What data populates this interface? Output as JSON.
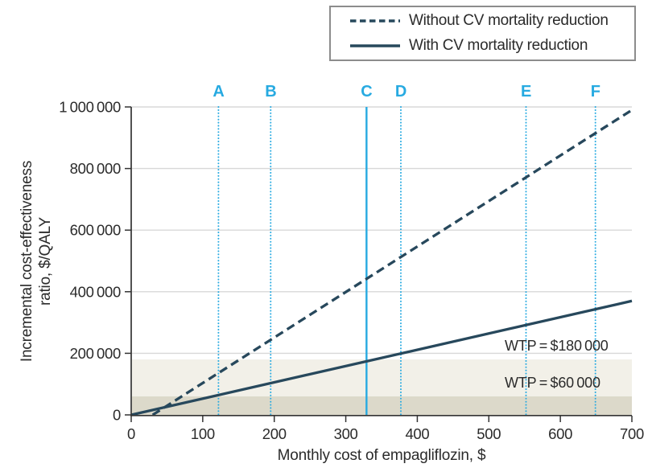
{
  "legend": {
    "items": [
      {
        "label": "Without CV mortality reduction",
        "style": "dashed"
      },
      {
        "label": "With CV mortality reduction",
        "style": "solid"
      }
    ]
  },
  "chart_data": {
    "type": "line",
    "xlabel": "Monthly cost of empagliflozin, $",
    "ylabel_lines": [
      "Incremental cost-effectiveness",
      "ratio, $/QALY"
    ],
    "xlim": [
      0,
      700
    ],
    "ylim": [
      0,
      1000000
    ],
    "x_ticks": [
      0,
      100,
      200,
      300,
      400,
      500,
      600,
      700
    ],
    "y_ticks": [
      0,
      200000,
      400000,
      600000,
      800000,
      1000000
    ],
    "y_tick_labels": [
      "0",
      "200 000",
      "400 000",
      "600 000",
      "800 000",
      "1 000 000"
    ],
    "grid": "horizontal-gridlines",
    "legend_position": "top-right",
    "line_color": "#27485c",
    "marker_color": "#27aae1",
    "series": [
      {
        "name": "Without CV mortality reduction",
        "style": "dashed",
        "points": [
          [
            30,
            0
          ],
          [
            700,
            990000
          ]
        ]
      },
      {
        "name": "With CV mortality reduction",
        "style": "solid",
        "points": [
          [
            0,
            0
          ],
          [
            700,
            370000
          ]
        ]
      }
    ],
    "vertical_markers": [
      {
        "label": "A",
        "x": 122,
        "style": "dotted"
      },
      {
        "label": "B",
        "x": 195,
        "style": "dotted"
      },
      {
        "label": "C",
        "x": 329,
        "style": "solid"
      },
      {
        "label": "D",
        "x": 377,
        "style": "dotted"
      },
      {
        "label": "E",
        "x": 552,
        "style": "dotted"
      },
      {
        "label": "F",
        "x": 649,
        "style": "dotted"
      }
    ],
    "wtp_bands": [
      {
        "label": "WTP = $180 000",
        "threshold": 180000,
        "fill": "#f2f0e8"
      },
      {
        "label": "WTP = $60 000",
        "threshold": 60000,
        "fill": "#dcd9ca"
      }
    ]
  }
}
